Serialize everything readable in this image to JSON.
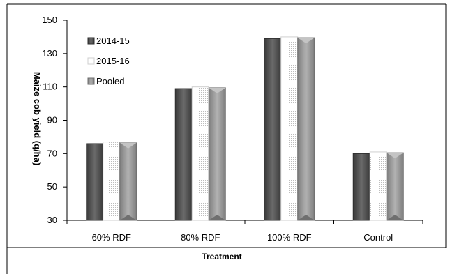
{
  "chart_data": {
    "type": "bar",
    "categories": [
      "60% RDF",
      "80% RDF",
      "100% RDF",
      "Control"
    ],
    "series": [
      {
        "name": "2014-15",
        "values": [
          76,
          109,
          139,
          70
        ],
        "color": "#555555"
      },
      {
        "name": "2015-16",
        "values": [
          77,
          110,
          140,
          71
        ],
        "color": "#f2f2f2"
      },
      {
        "name": "Pooled",
        "values": [
          76.5,
          109.5,
          139.5,
          70.5
        ],
        "color": "#9a9a9a"
      }
    ],
    "yticks": [
      30,
      50,
      70,
      90,
      110,
      130,
      150
    ],
    "ylim": [
      30,
      150
    ],
    "xlabel": "Treatment",
    "ylabel": "Maize cob yield (q/ha)",
    "legend_position": "top-left"
  }
}
